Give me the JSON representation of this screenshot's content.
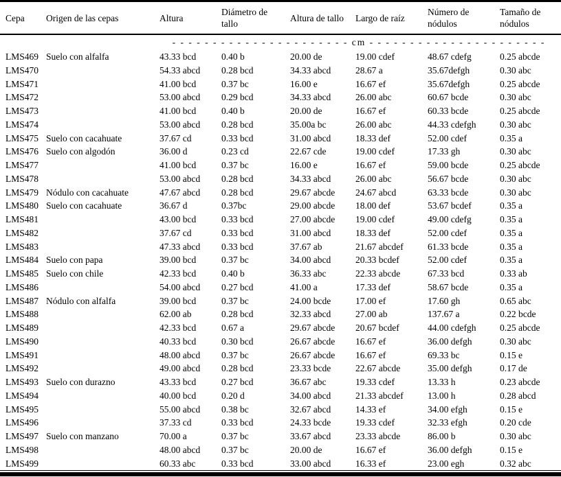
{
  "table": {
    "columns": [
      "Cepa",
      "Origen de las cepas",
      "Altura",
      "Diámetro de tallo",
      "Altura de tallo",
      "Largo de raíz",
      "Número de nódulos",
      "Tamaño  de nódulos"
    ],
    "unit_row": {
      "text": "- - - - - - - - - - - - - - - - - - - - - - cm - - - - - - - - - - - - - - - - - - - - - -",
      "unit": "cm"
    },
    "rows": [
      [
        "LMS469",
        "Suelo con alfalfa",
        "43.33 bcd",
        "0.40 b",
        "20.00 de",
        "19.00 cdef",
        "48.67 cdefg",
        "0.25 abcde"
      ],
      [
        "LMS470",
        "",
        "54.33 abcd",
        "0.28 bcd",
        "34.33 abcd",
        "28.67 a",
        "35.67defgh",
        "0.30 abc"
      ],
      [
        "LMS471",
        "",
        "41.00 bcd",
        "0.37 bc",
        "16.00 e",
        "16.67 ef",
        "35.67defgh",
        "0.25 abcde"
      ],
      [
        "LMS472",
        "",
        "53.00 abcd",
        "0.29 bcd",
        "34.33 abcd",
        "26.00 abc",
        "60.67 bcde",
        "0.30 abc"
      ],
      [
        "LMS473",
        "",
        "41.00 bcd",
        "0.40 b",
        "20.00 de",
        "16.67 ef",
        "60.33 bcde",
        "0.25 abcde"
      ],
      [
        "LMS474",
        "",
        "53.00 abcd",
        "0.28 bcd",
        "35.00a bc",
        "26.00 abc",
        "44.33 cdefgh",
        "0.30 abc"
      ],
      [
        "LMS475",
        "Suelo con cacahuate",
        "37.67 cd",
        "0.33 bcd",
        "31.00 abcd",
        "18.33 def",
        "52.00 cdef",
        "0.35 a"
      ],
      [
        "LMS476",
        "Suelo con algodón",
        "36.00 d",
        "0.23 cd",
        "22.67 cde",
        "19.00 cdef",
        "17.33 gh",
        "0.30 abc"
      ],
      [
        "LMS477",
        "",
        "41.00 bcd",
        "0.37 bc",
        "16.00 e",
        "16.67 ef",
        "59.00 bcde",
        "0.25 abcde"
      ],
      [
        "LMS478",
        "",
        "53.00 abcd",
        "0.28 bcd",
        "34.33 abcd",
        "26.00 abc",
        "56.67 bcde",
        "0.30 abc"
      ],
      [
        "LMS479",
        "Nódulo con cacahuate",
        "47.67 abcd",
        "0.28 bcd",
        "29.67 abcde",
        "24.67 abcd",
        "63.33 bcde",
        "0.30 abc"
      ],
      [
        "LMS480",
        "Suelo con cacahuate",
        "36.67 d",
        "0.37bc",
        "29.00 abcde",
        "18.00 def",
        "53.67 bcdef",
        "0.35 a"
      ],
      [
        "LMS481",
        "",
        "43.00 bcd",
        "0.33 bcd",
        "27.00 abcde",
        "19.00 cdef",
        "49.00 cdefg",
        "0.35 a"
      ],
      [
        "LMS482",
        "",
        "37.67 cd",
        "0.33 bcd",
        "31.00 abcd",
        "18.33 def",
        "52.00 cdef",
        "0.35 a"
      ],
      [
        "LMS483",
        "",
        "47.33 abcd",
        "0.33 bcd",
        "37.67 ab",
        "21.67 abcdef",
        "61.33 bcde",
        "0.35 a"
      ],
      [
        "LMS484",
        "Suelo con papa",
        "39.00 bcd",
        "0.37 bc",
        "34.00 abcd",
        "20.33 bcdef",
        "52.00 cdef",
        "0.35 a"
      ],
      [
        "LMS485",
        "Suelo con chile",
        "42.33 bcd",
        "0.40 b",
        "36.33 abc",
        "22.33 abcde",
        "67.33 bcd",
        "0.33 ab"
      ],
      [
        "LMS486",
        "",
        "54.00 abcd",
        "0.27 bcd",
        "41.00 a",
        "17.33 def",
        "58.67 bcde",
        "0.35 a"
      ],
      [
        "LMS487",
        "Nódulo con alfalfa",
        "39.00 bcd",
        "0.37 bc",
        "24.00 bcde",
        "17.00 ef",
        "17.60 gh",
        "0.65 abc"
      ],
      [
        "LMS488",
        "",
        "62.00 ab",
        "0.28 bcd",
        "32.33 abcd",
        "27.00 ab",
        "137.67 a",
        "0.22 bcde"
      ],
      [
        "LMS489",
        "",
        "42.33 bcd",
        "0.67 a",
        "29.67 abcde",
        "20.67 bcdef",
        "44.00 cdefgh",
        "0.25 abcde"
      ],
      [
        "LMS490",
        "",
        "40.33 bcd",
        "0.30 bcd",
        "26.67 abcde",
        "16.67 ef",
        "36.00 defgh",
        "0.30 abc"
      ],
      [
        "LMS491",
        "",
        "48.00 abcd",
        "0.37 bc",
        "26.67 abcde",
        "16.67 ef",
        "69.33 bc",
        "0.15 e"
      ],
      [
        "LMS492",
        "",
        "49.00 abcd",
        "0.28 bcd",
        "23.33 bcde",
        "22.67 abcde",
        "35.00 defgh",
        "0.17 de"
      ],
      [
        "LMS493",
        "Suelo con durazno",
        "43.33 bcd",
        "0.27 bcd",
        "36.67 abc",
        "19.33 cdef",
        "13.33 h",
        "0.23 abcde"
      ],
      [
        "LMS494",
        "",
        "40.00 bcd",
        "0.20 d",
        "34.00 abcd",
        "21.33 abcdef",
        "13.00 h",
        "0.28 abcd"
      ],
      [
        "LMS495",
        "",
        "55.00 abcd",
        "0.38 bc",
        "32.67 abcd",
        "14.33 ef",
        "34.00 efgh",
        "0.15 e"
      ],
      [
        "LMS496",
        "",
        "37.33 cd",
        "0.33 bcd",
        "24.33 bcde",
        "19.33 cdef",
        "32.33 efgh",
        "0.20 cde"
      ],
      [
        "LMS497",
        "Suelo  con manzano",
        "70.00 a",
        "0.37 bc",
        "33.67 abcd",
        "23.33 abcde",
        "86.00 b",
        "0.30 abc"
      ],
      [
        "LMS498",
        "",
        "48.00 abcd",
        "0.37 bc",
        "20.00 de",
        "16.67 ef",
        "36.00 defgh",
        "0.15 e"
      ],
      [
        "LMS499",
        "",
        "60.33 abc",
        "0.33 bcd",
        "33.00 abcd",
        "16.33 ef",
        "23.00 egh",
        "0.32 abc"
      ]
    ]
  }
}
